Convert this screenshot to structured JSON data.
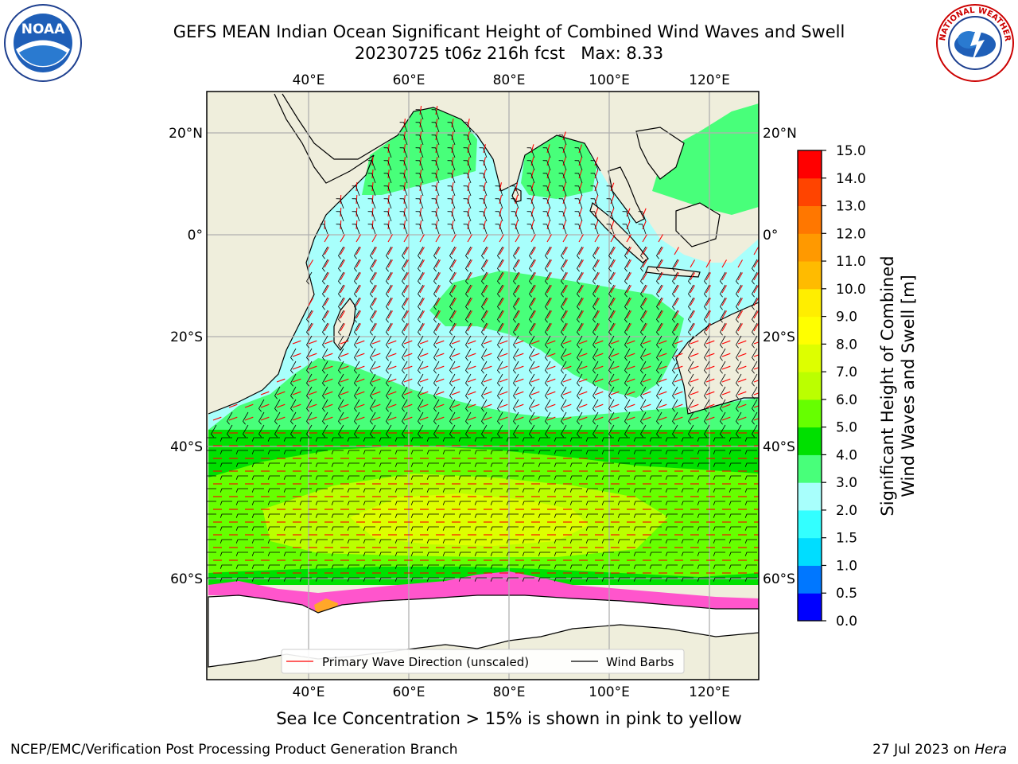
{
  "title": {
    "line1": "GEFS MEAN Indian Ocean Significant Height of Combined Wind Waves and Swell",
    "line2": "20230725 t06z 216h fcst   Max: 8.33"
  },
  "map": {
    "lon_labels": [
      "40°E",
      "60°E",
      "80°E",
      "100°E",
      "120°E"
    ],
    "lat_labels_left": [
      "20°N",
      "0°",
      "20°S",
      "40°S",
      "60°S"
    ],
    "lat_labels_right": [
      "20°N",
      "0°",
      "20°S",
      "40°S",
      "60°S"
    ],
    "legend": {
      "wave_direction": "Primary Wave Direction (unscaled)",
      "wind_barbs": "Wind Barbs"
    },
    "colors": {
      "land": "#efeedc",
      "ocean_light": "#a8fffc",
      "arrow": "#ff0000",
      "grid": "#b0b0b0"
    }
  },
  "colorbar": {
    "label_line1": "Significant Height of Combined",
    "label_line2": "Wind Waves and Swell [m]",
    "ticks": [
      "0.0",
      "0.5",
      "1.0",
      "1.5",
      "2.0",
      "3.0",
      "4.0",
      "5.0",
      "6.0",
      "7.0",
      "8.0",
      "9.0",
      "10.0",
      "11.0",
      "12.0",
      "13.0",
      "14.0",
      "15.0"
    ],
    "colors": [
      "#0000ff",
      "#0077ff",
      "#00ddff",
      "#33ffff",
      "#a8fffc",
      "#48ff7a",
      "#00e000",
      "#66ff00",
      "#bbff00",
      "#ddff00",
      "#ffff00",
      "#ffee00",
      "#ffbb00",
      "#ff9900",
      "#ff7700",
      "#ff4400",
      "#ff0000"
    ]
  },
  "caption": "Sea Ice Concentration > 15% is shown in pink to yellow",
  "footer": {
    "left": "NCEP/EMC/Verification Post Processing Product Generation Branch",
    "right_prefix": "27 Jul 2023 on ",
    "right_host": "Hera"
  },
  "logos": {
    "noaa": "NOAA",
    "nws": "NATIONAL WEATHER SERVICE"
  }
}
